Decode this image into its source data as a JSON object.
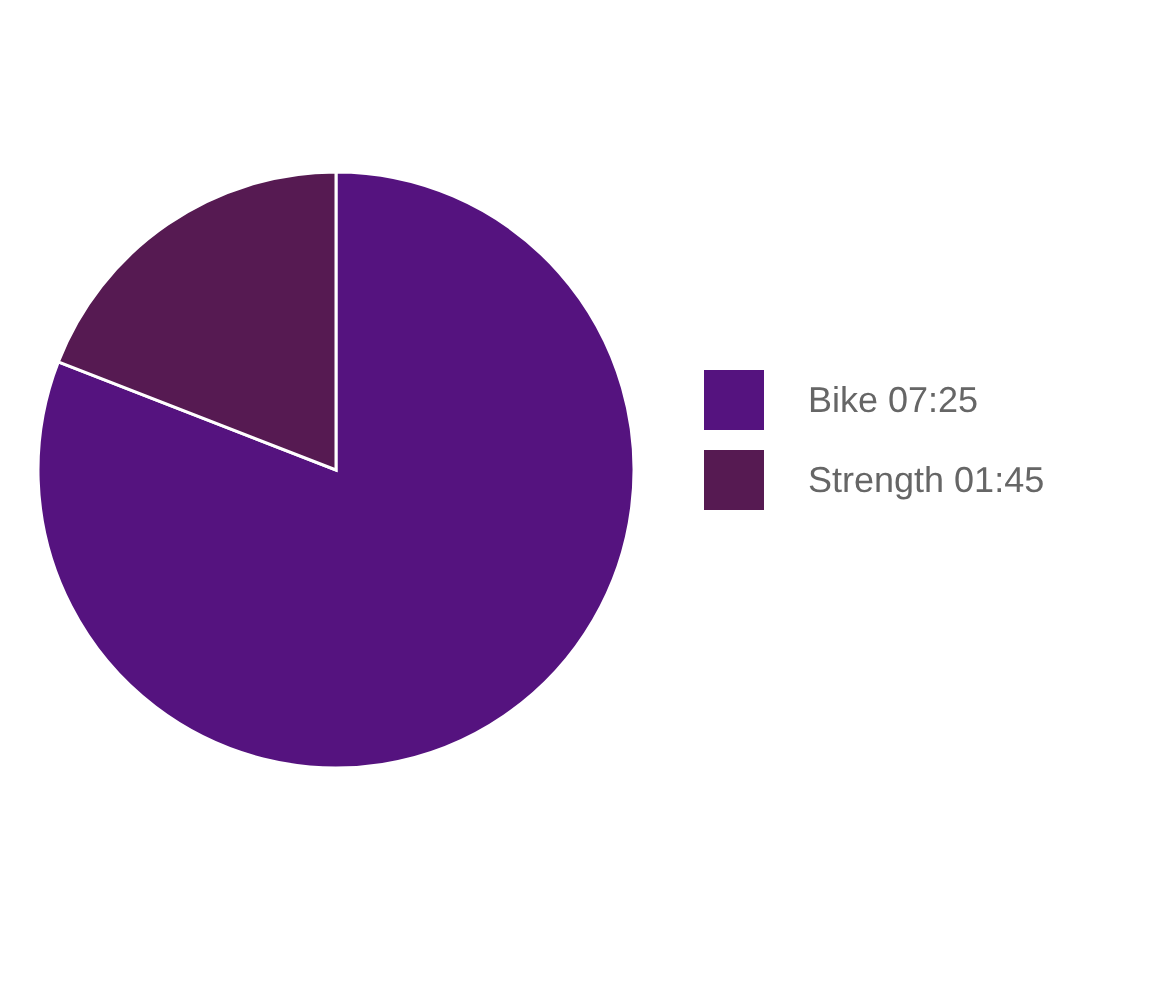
{
  "chart_data": {
    "type": "pie",
    "categories": [
      "Bike",
      "Strength"
    ],
    "values": [
      445,
      105
    ],
    "value_labels": [
      "07:25",
      "01:45"
    ],
    "colors": [
      "#55137f",
      "#561a52"
    ],
    "legend": "right"
  }
}
